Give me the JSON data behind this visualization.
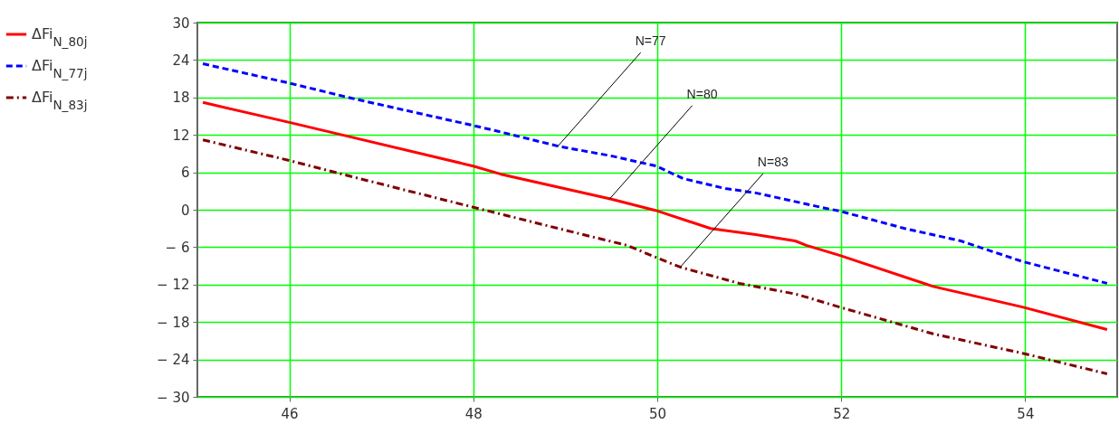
{
  "chart_data": {
    "type": "line",
    "xlim": [
      45,
      55
    ],
    "xticks": [
      46,
      48,
      50,
      52,
      54
    ],
    "ylim": [
      -30,
      30
    ],
    "yticks": [
      {
        "value": -30,
        "label": "− 30"
      },
      {
        "value": -24,
        "label": "− 24"
      },
      {
        "value": -18,
        "label": "− 18"
      },
      {
        "value": -12,
        "label": "− 12"
      },
      {
        "value": -6,
        "label": "− 6"
      },
      0,
      6,
      12,
      18,
      24,
      30
    ],
    "grid": true,
    "legend": "left",
    "series": [
      {
        "name": "ΔFi$_{N_80j}$",
        "color": "#ff0000",
        "line_style": "solid",
        "x": [
          45.06,
          46,
          46.6,
          48,
          48.3,
          49.5,
          49.98,
          50.58,
          51.07,
          51.5,
          51.62,
          51.98,
          53.0,
          53.97,
          54.89
        ],
        "values": [
          17.2,
          14.0,
          11.9,
          7.0,
          5.7,
          1.7,
          -0.1,
          -3.0,
          -4.0,
          -5.0,
          -5.7,
          -7.3,
          -12.3,
          -15.6,
          -19.2
        ]
      },
      {
        "name": "ΔFi$_{N_77j}$",
        "color": "#0000ff",
        "line_style": "dashed",
        "x": [
          45.06,
          46,
          46.67,
          48,
          48.26,
          48.92,
          49.51,
          49.99,
          50.28,
          50.74,
          51.07,
          51.81,
          51.98,
          52.69,
          53.3,
          53.97,
          54.89
        ],
        "values": [
          23.4,
          20.3,
          17.9,
          13.5,
          12.6,
          10.2,
          8.6,
          7.0,
          5.0,
          3.4,
          2.7,
          0.3,
          -0.2,
          -3.0,
          -5.0,
          -8.3,
          -11.8
        ]
      },
      {
        "name": "ΔFi$_{N_83j}$",
        "color": "#800000",
        "line_style": "dashdot",
        "x": [
          45.06,
          46,
          46.6,
          48,
          48.3,
          49.06,
          49.67,
          49.98,
          50.25,
          50.89,
          51.5,
          51.62,
          51.98,
          53.0,
          53.97,
          54.89
        ],
        "values": [
          11.2,
          7.9,
          5.6,
          0.4,
          -0.7,
          -3.5,
          -5.7,
          -7.6,
          -9.2,
          -11.8,
          -13.5,
          -14.0,
          -15.6,
          -19.9,
          -23.0,
          -26.3
        ]
      }
    ],
    "annotations": [
      {
        "text": "N=77",
        "x": 48.92,
        "y": 10.2
      },
      {
        "text": "N=80",
        "x": 49.48,
        "y": 1.7
      },
      {
        "text": "N=83",
        "x": 50.25,
        "y": -9.2
      }
    ]
  }
}
